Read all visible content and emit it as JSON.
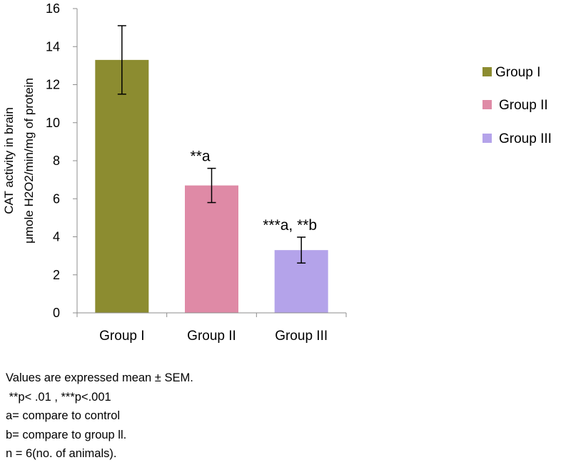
{
  "chart_data": {
    "type": "bar",
    "categories": [
      "Group I",
      "Group II",
      "Group III"
    ],
    "values": [
      13.3,
      6.7,
      3.3
    ],
    "errors": [
      1.8,
      0.9,
      0.68
    ],
    "colors": [
      "#8c8c30",
      "#df8aa6",
      "#b4a3ea"
    ],
    "annotations": [
      "",
      "**a",
      "***a, **b"
    ],
    "ylabel_lines": [
      "CAT activity in brain",
      "μmole H2O2/min/mg of protein"
    ],
    "xlabel": "",
    "ylim": [
      0,
      16
    ],
    "yticks": [
      "0",
      "2",
      "4",
      "6",
      "8",
      "10",
      "12",
      "14",
      "16"
    ],
    "legend": [
      "Group I",
      "Group II",
      "Group III"
    ],
    "legend_position": "right",
    "grid": false
  },
  "notes": [
    "Values are expressed mean ± SEM.",
    " **p< .01 , ***p<.001",
    "a= compare to control",
    "b= compare to group ll.",
    "n = 6(no. of animals)."
  ]
}
